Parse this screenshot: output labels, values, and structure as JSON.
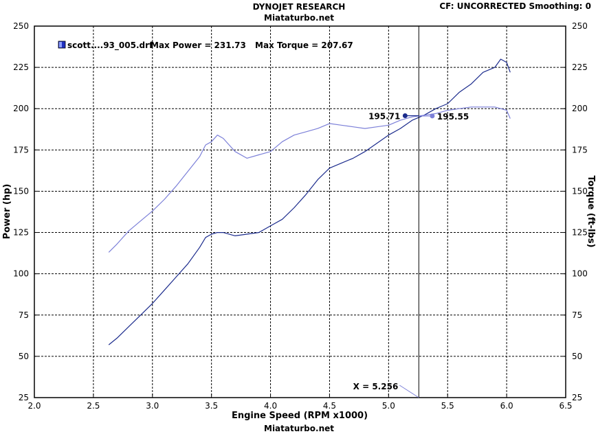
{
  "header": {
    "title": "DYNOJET RESEARCH",
    "subtitle": "Miataturbo.net",
    "cf_info": "CF: UNCORRECTED  Smoothing: 0",
    "footer": "Miataturbo.net"
  },
  "legend": {
    "file": "scott....93_005.drf",
    "max_power": "Max Power = 231.73",
    "max_torque": "Max Torque = 207.67"
  },
  "chart_data": {
    "type": "line",
    "xlabel": "Engine Speed (RPM x1000)",
    "ylabel_left": "Power (hp)",
    "ylabel_right": "Torque (ft-lbs)",
    "xlim": [
      2.0,
      6.5
    ],
    "ylim": [
      25,
      250
    ],
    "x_ticks": [
      "2.0",
      "2.5",
      "3.0",
      "3.5",
      "4.0",
      "4.5",
      "5.0",
      "5.5",
      "6.0",
      "6.5"
    ],
    "y_ticks": [
      "25",
      "50",
      "75",
      "100",
      "125",
      "150",
      "175",
      "200",
      "225",
      "250"
    ],
    "grid": true,
    "cursor": {
      "x": 5.256,
      "label": "X = 5.256"
    },
    "markers": [
      {
        "series": "power",
        "x": 5.14,
        "y": 195.71,
        "label": "195.71"
      },
      {
        "series": "torque",
        "x": 5.37,
        "y": 195.55,
        "label": "195.55"
      }
    ],
    "colors": {
      "power": "#1a2a8c",
      "torque": "#7b7fd8",
      "grid": "#000000"
    },
    "series": [
      {
        "key": "power",
        "x": [
          2.63,
          2.7,
          2.8,
          2.9,
          3.0,
          3.1,
          3.2,
          3.3,
          3.4,
          3.45,
          3.5,
          3.55,
          3.6,
          3.7,
          3.8,
          3.9,
          4.0,
          4.1,
          4.2,
          4.3,
          4.4,
          4.5,
          4.6,
          4.7,
          4.8,
          4.9,
          5.0,
          5.1,
          5.2,
          5.3,
          5.4,
          5.5,
          5.6,
          5.7,
          5.8,
          5.9,
          5.95,
          6.0,
          6.03
        ],
        "y": [
          57,
          61,
          68,
          75,
          82,
          90,
          98,
          106,
          116,
          122,
          124,
          125,
          125,
          123,
          124,
          125,
          129,
          133,
          140,
          148,
          157,
          164,
          167,
          170,
          174,
          179,
          184,
          188,
          193,
          196,
          200,
          203,
          210,
          215,
          222,
          225,
          230,
          228,
          222
        ]
      },
      {
        "key": "torque",
        "x": [
          2.63,
          2.7,
          2.8,
          2.9,
          3.0,
          3.1,
          3.2,
          3.3,
          3.4,
          3.45,
          3.5,
          3.55,
          3.6,
          3.65,
          3.7,
          3.8,
          3.9,
          4.0,
          4.1,
          4.2,
          4.3,
          4.4,
          4.5,
          4.6,
          4.7,
          4.8,
          4.9,
          5.0,
          5.1,
          5.2,
          5.3,
          5.4,
          5.5,
          5.6,
          5.7,
          5.8,
          5.9,
          6.0,
          6.03
        ],
        "y": [
          113,
          118,
          126,
          132,
          138,
          145,
          153,
          162,
          171,
          178,
          180,
          184,
          182,
          178,
          174,
          170,
          172,
          174,
          180,
          184,
          186,
          188,
          191,
          190,
          189,
          188,
          189,
          190,
          193,
          195,
          196,
          197,
          199,
          200,
          201,
          201,
          201,
          199,
          194
        ]
      }
    ]
  }
}
